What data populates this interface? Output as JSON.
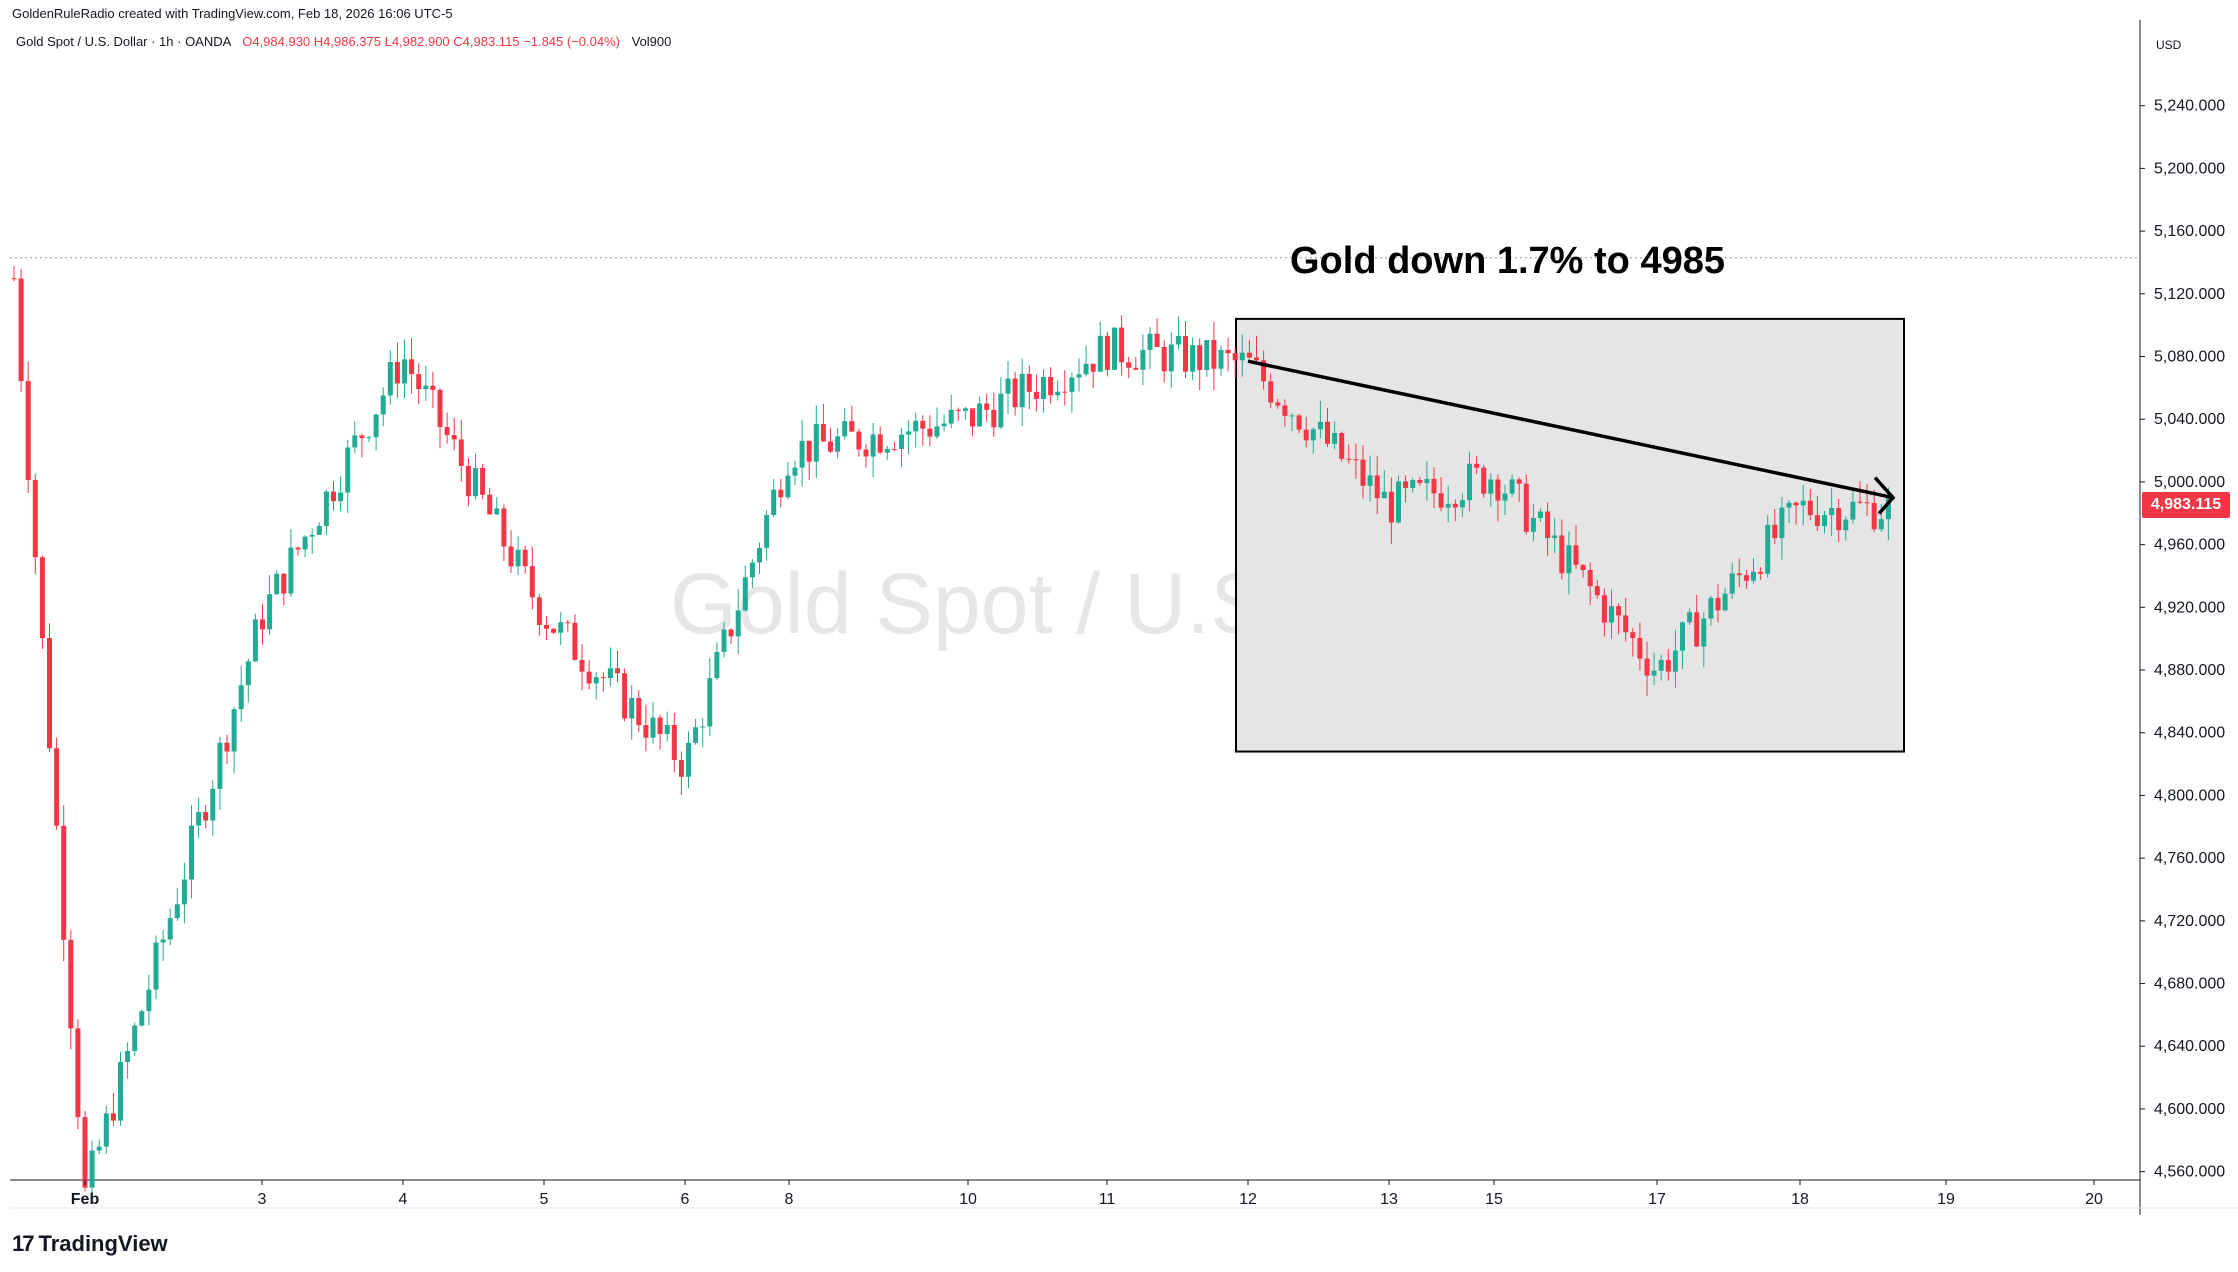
{
  "header": {
    "credit": "GoldenRuleRadio created with TradingView.com, Feb 18, 2026 16:06 UTC-5"
  },
  "symbol": {
    "name": "Gold Spot / U.S. Dollar · 1h · OANDA",
    "ohlc": "O4,984.930  H4,986.375  L4,982.900  C4,983.115  −1.845 (−0.04%)",
    "volume": "Vol900"
  },
  "watermark": "Gold Spot / U.S. Dollar",
  "annotation": "Gold down 1.7% to 4985",
  "currency": "USD",
  "last_price": "4,983.115",
  "brand": "TradingView",
  "colors": {
    "up": "#22ab94",
    "down": "#f23645",
    "box_fill": "#e5e5e5",
    "trendline": "#000000"
  },
  "chart_data": {
    "type": "candlestick",
    "ylim": [
      4540,
      5280
    ],
    "y_ticks": [
      "5,240.000",
      "5,200.000",
      "5,160.000",
      "5,120.000",
      "5,080.000",
      "5,040.000",
      "5,000.000",
      "4,960.000",
      "4,920.000",
      "4,880.000",
      "4,840.000",
      "4,800.000",
      "4,760.000",
      "4,720.000",
      "4,680.000",
      "4,640.000",
      "4,600.000",
      "4,560.000"
    ],
    "x_ticks": [
      "Feb",
      "3",
      "4",
      "5",
      "6",
      "8",
      "10",
      "11",
      "12",
      "13",
      "15",
      "17",
      "18",
      "19",
      "20"
    ],
    "dotted_level": 5143,
    "box": {
      "y_top": 5104,
      "y_bottom": 4828
    },
    "trendline": {
      "start": 5077,
      "end": 4990
    },
    "segments": [
      {
        "label": "Feb",
        "close": 4545,
        "low": 4540
      },
      {
        "label": "3",
        "close": 4915,
        "low": 4880
      },
      {
        "label": "4",
        "close": 5080,
        "high": 5090
      },
      {
        "label": "5",
        "close": 4915,
        "low": 4810
      },
      {
        "label": "6",
        "close": 4820,
        "low": 4655
      },
      {
        "label": "8",
        "close": 5020,
        "high": 5048
      },
      {
        "label": "10",
        "close": 5040,
        "high": 5085
      },
      {
        "label": "11",
        "close": 5085,
        "high": 5115
      },
      {
        "label": "12",
        "close": 5075,
        "low": 4875
      },
      {
        "label": "13",
        "close": 4985,
        "high": 5000
      },
      {
        "label": "15",
        "close": 5005,
        "high": 5045
      },
      {
        "label": "17",
        "close": 4880,
        "low": 4842
      },
      {
        "label": "18",
        "close": 4983,
        "high": 5010
      }
    ]
  }
}
